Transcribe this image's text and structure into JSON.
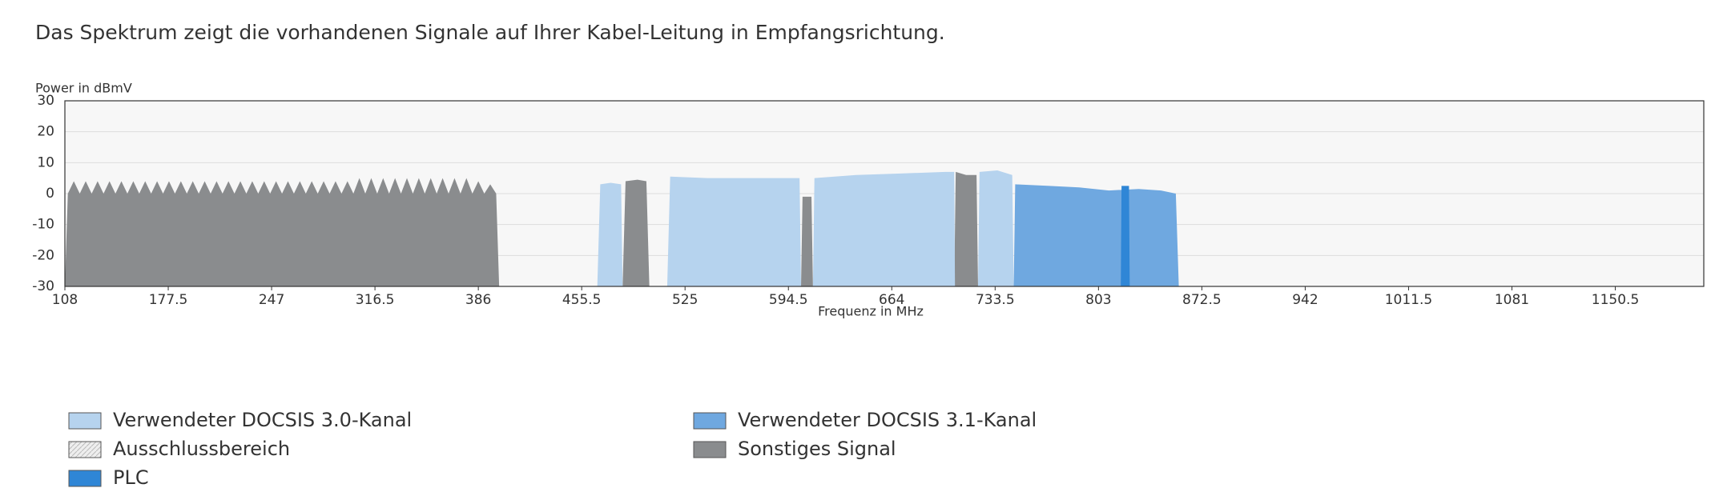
{
  "chart_data": {
    "type": "area",
    "title": "Das Spektrum zeigt die vorhandenen Signale auf Ihrer Kabel-Leitung in Empfangsrichtung.",
    "y_label": "Power in dBmV",
    "x_label": "Frequenz in MHz",
    "xlim": [
      108,
      1210
    ],
    "xticks": [
      108,
      177.5,
      247,
      316.5,
      386,
      455.5,
      525,
      594.5,
      664,
      733.5,
      803,
      872.5,
      942,
      1011.5,
      1081,
      1150.5
    ],
    "ylim": [
      -30,
      30
    ],
    "yticks": [
      -30,
      -20,
      -10,
      0,
      10,
      20,
      30
    ],
    "grid": true,
    "series": [
      {
        "name": "Verwendeter DOCSIS 3.0-Kanal",
        "color": "#b6d3ee",
        "x": [
          466,
          468,
          475,
          482,
          483,
          null,
          513,
          515,
          540,
          570,
          602,
          603,
          null,
          611,
          612,
          640,
          670,
          700,
          706,
          706.5,
          null,
          722,
          723,
          735,
          745,
          746
        ],
        "values": [
          -30,
          3,
          3.5,
          3,
          -30,
          null,
          -30,
          5.5,
          5,
          5,
          5,
          -30,
          null,
          -30,
          5,
          6,
          6.5,
          7,
          7,
          -30,
          null,
          -30,
          7,
          7.5,
          6,
          -30
        ]
      },
      {
        "name": "Ausschlussbereich",
        "color": "#eeeeee",
        "x": [],
        "values": []
      },
      {
        "name": "PLC",
        "color": "#2f86d6",
        "x": [
          818,
          818.5,
          823.5,
          824
        ],
        "values": [
          -30,
          2.5,
          2.5,
          -30
        ]
      },
      {
        "name": "Verwendeter DOCSIS 3.1-Kanal",
        "color": "#6fa8e0",
        "x": [
          746,
          747,
          770,
          790,
          810,
          830,
          845,
          855,
          857
        ],
        "values": [
          -30,
          3,
          2.5,
          2,
          1,
          1.5,
          1,
          0,
          -30
        ]
      },
      {
        "name": "Sonstiges Signal",
        "color": "#8a8c8e",
        "x": [
          108,
          110,
          114,
          118,
          122,
          126,
          130,
          134,
          138,
          142,
          146,
          150,
          154,
          158,
          162,
          166,
          170,
          174,
          178,
          182,
          186,
          190,
          194,
          198,
          202,
          206,
          210,
          214,
          218,
          222,
          226,
          230,
          234,
          238,
          242,
          246,
          250,
          254,
          258,
          262,
          266,
          270,
          274,
          278,
          282,
          286,
          290,
          294,
          298,
          302,
          306,
          310,
          314,
          318,
          322,
          326,
          330,
          334,
          338,
          342,
          346,
          350,
          354,
          358,
          362,
          366,
          370,
          374,
          378,
          382,
          386,
          390,
          394,
          398,
          400,
          null,
          483,
          485,
          493,
          499,
          501,
          null,
          603,
          604,
          610,
          611,
          null,
          706,
          707,
          714,
          721,
          722
        ],
        "values": [
          -30,
          0,
          4,
          0,
          4,
          0,
          4,
          0,
          4,
          0,
          4,
          0,
          4,
          0,
          4,
          0,
          4,
          0,
          4,
          0,
          4,
          0,
          4,
          0,
          4,
          0,
          4,
          0,
          4,
          0,
          4,
          0,
          4,
          0,
          4,
          0,
          4,
          0,
          4,
          0,
          4,
          0,
          4,
          0,
          4,
          0,
          4,
          0,
          4,
          0,
          5,
          0,
          5,
          0,
          5,
          0,
          5,
          0,
          5,
          0,
          5,
          0,
          5,
          0,
          5,
          0,
          5,
          0,
          5,
          0,
          4,
          0,
          3,
          0,
          -30,
          null,
          -30,
          4,
          4.5,
          4,
          -30,
          null,
          -30,
          -1,
          -1,
          -30,
          null,
          -30,
          7,
          6,
          6,
          -30
        ]
      }
    ]
  }
}
